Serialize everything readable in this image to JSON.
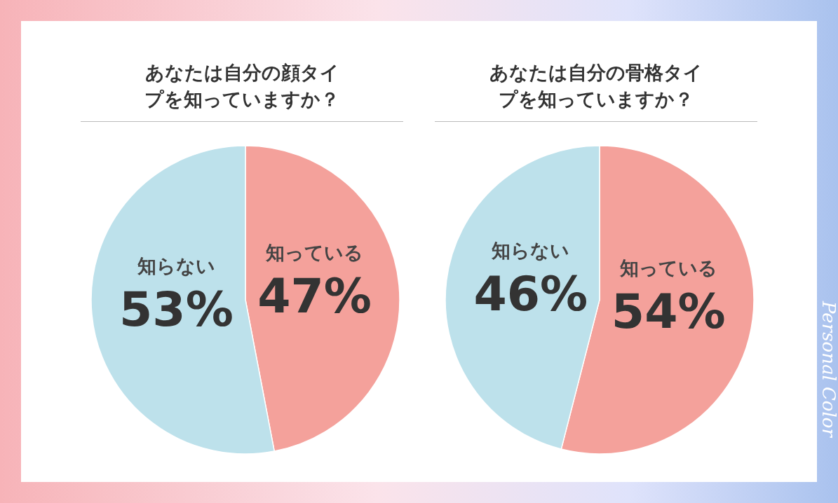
{
  "chart_data": [
    {
      "type": "pie",
      "title": "あなたは自分の顔タイプを知っていますか？",
      "categories": [
        "知っている",
        "知らない"
      ],
      "values": [
        47,
        53
      ],
      "value_labels": [
        "47%",
        "53%"
      ],
      "colors": [
        "#f4a19b",
        "#bde1eb"
      ],
      "legend": false
    },
    {
      "type": "pie",
      "title": "あなたは自分の骨格タイプを知っていますか？",
      "categories": [
        "知っている",
        "知らない"
      ],
      "values": [
        54,
        46
      ],
      "value_labels": [
        "54%",
        "46%"
      ],
      "colors": [
        "#f4a19b",
        "#bde1eb"
      ],
      "legend": false,
      "annotations": [
        "Personal Color"
      ]
    }
  ]
}
